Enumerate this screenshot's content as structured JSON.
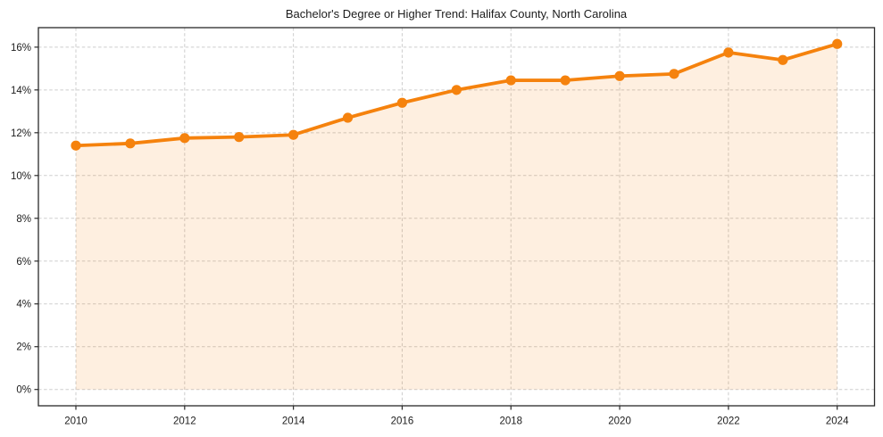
{
  "chart_data": {
    "type": "line",
    "title": "Bachelor's Degree or Higher Trend: Halifax County, North Carolina",
    "x": [
      2010,
      2011,
      2012,
      2013,
      2014,
      2015,
      2016,
      2017,
      2018,
      2019,
      2020,
      2021,
      2022,
      2023,
      2024
    ],
    "series": [
      {
        "name": "Bachelor's Degree or Higher",
        "values": [
          11.4,
          11.5,
          11.75,
          11.8,
          11.9,
          12.7,
          13.4,
          14.0,
          14.45,
          14.45,
          14.65,
          14.75,
          15.75,
          15.4,
          16.15
        ]
      }
    ],
    "xlabel": "",
    "ylabel": "",
    "ylim": [
      0,
      16
    ],
    "yticks": [
      0,
      2,
      4,
      6,
      8,
      10,
      12,
      14,
      16
    ],
    "ytick_labels": [
      "0%",
      "2%",
      "4%",
      "6%",
      "8%",
      "10%",
      "12%",
      "14%",
      "16%"
    ],
    "xticks": [
      2010,
      2012,
      2014,
      2016,
      2018,
      2020,
      2022,
      2024
    ],
    "grid": true,
    "grid_style": "dashed",
    "legend": "none",
    "marker": "circle",
    "area_fill": true,
    "colors": {
      "line": "#F5820D",
      "marker": "#F5820D",
      "fill": "rgba(245,130,13,0.13)",
      "grid": "#CDCDCD",
      "axis": "#2A2A2A",
      "text": "#1C1C1C"
    }
  }
}
